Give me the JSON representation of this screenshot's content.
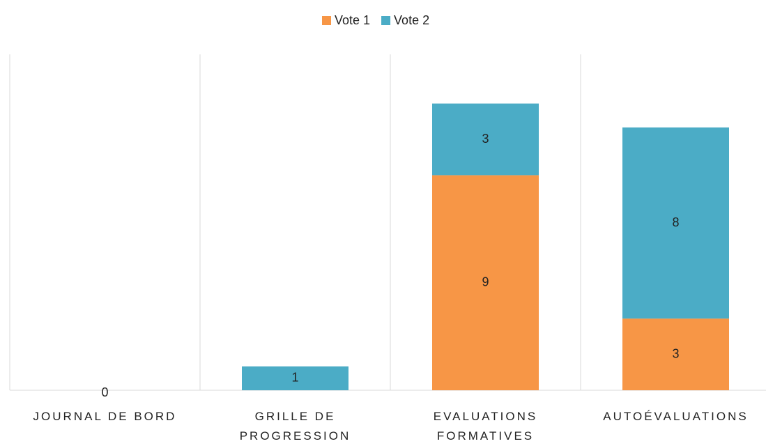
{
  "chart_data": {
    "type": "stacked_bar",
    "categories": [
      "JOURNAL DE BORD",
      "GRILLE DE PROGRESSION",
      "EVALUATIONS FORMATIVES",
      "AUTOÉVALUATIONS"
    ],
    "series": [
      {
        "name": "Vote 1",
        "color": "#f79646",
        "values": [
          null,
          null,
          9,
          3
        ]
      },
      {
        "name": "Vote 2",
        "color": "#4bacc6",
        "values": [
          0,
          1,
          3,
          8
        ]
      }
    ],
    "ylim": [
      0,
      14
    ],
    "legend": "top"
  }
}
